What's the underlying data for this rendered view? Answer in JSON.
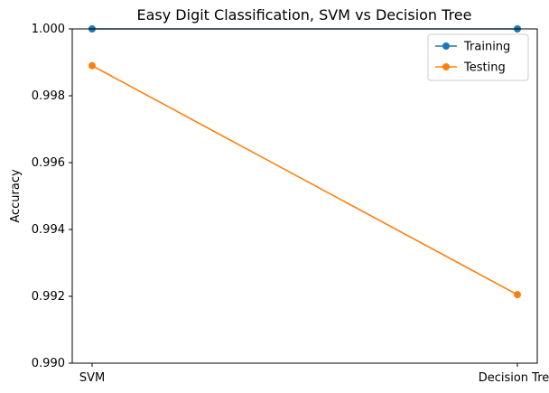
{
  "chart_data": {
    "type": "line",
    "title": "Easy Digit Classification, SVM vs Decision Tree",
    "xlabel": "",
    "ylabel": "Accuracy",
    "categories": [
      "SVM",
      "Decision Tree"
    ],
    "ylim": [
      0.99,
      1.0
    ],
    "yticks": [
      "0.990",
      "0.992",
      "0.994",
      "0.996",
      "0.998",
      "1.000"
    ],
    "grid": false,
    "legend_position": "top-right",
    "series": [
      {
        "name": "Training",
        "values": [
          1.0,
          1.0
        ],
        "color": "#1f77b4"
      },
      {
        "name": "Testing",
        "values": [
          0.9989,
          0.99205
        ],
        "color": "#ff7f0e"
      }
    ]
  }
}
